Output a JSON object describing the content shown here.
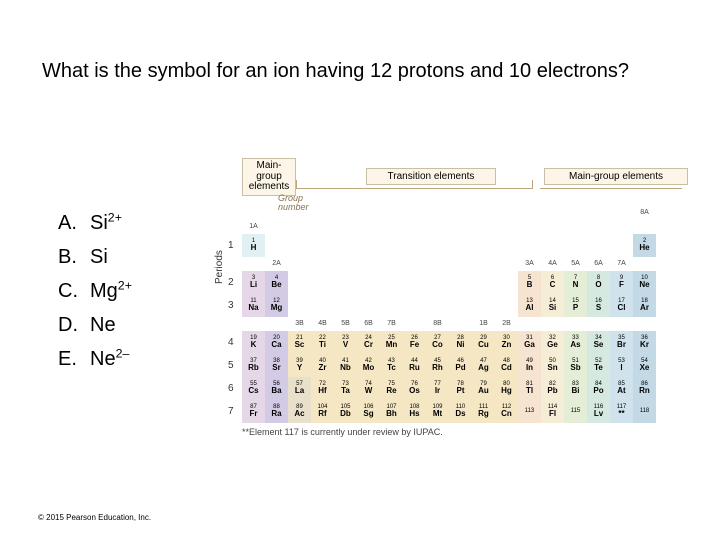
{
  "question": "What is the symbol for an ion having 12 protons and 10 electrons?",
  "answers": [
    {
      "letter": "A.",
      "sym": "Si",
      "sup": "2+"
    },
    {
      "letter": "B.",
      "sym": "Si",
      "sup": ""
    },
    {
      "letter": "C.",
      "sym": "Mg",
      "sup": "2+"
    },
    {
      "letter": "D.",
      "sym": "Ne",
      "sup": ""
    },
    {
      "letter": "E.",
      "sym": "Ne",
      "sup": "2–"
    }
  ],
  "copyright": "© 2015  Pearson Education, Inc.",
  "labels": {
    "main_left": "Main-\ngroup\nelements",
    "transition": "Transition elements",
    "main_right": "Main-group elements",
    "group_number": "Group\nnumber",
    "periods": "Periods"
  },
  "note": "**Element 117 is currently under review by IUPAC.",
  "col_heads": [
    "1A",
    "2A",
    "3B",
    "4B",
    "5B",
    "6B",
    "7B",
    "",
    "8B",
    "",
    "1B",
    "2B",
    "3A",
    "4A",
    "5A",
    "6A",
    "7A",
    "8A"
  ],
  "periods": [
    "1",
    "2",
    "3",
    "4",
    "5",
    "6",
    "7"
  ],
  "cells": [
    [
      {
        "n": "1",
        "s": "H",
        "c": "c-h"
      },
      null,
      null,
      null,
      null,
      null,
      null,
      null,
      null,
      null,
      null,
      null,
      null,
      null,
      null,
      null,
      null,
      {
        "n": "2",
        "s": "He",
        "c": "c-nob"
      }
    ],
    [
      {
        "n": "3",
        "s": "Li",
        "c": "c-alk"
      },
      {
        "n": "4",
        "s": "Be",
        "c": "c-ae"
      },
      null,
      null,
      null,
      null,
      null,
      null,
      null,
      null,
      null,
      null,
      {
        "n": "5",
        "s": "B",
        "c": "c-bor"
      },
      {
        "n": "6",
        "s": "C",
        "c": "c-car"
      },
      {
        "n": "7",
        "s": "N",
        "c": "c-nit"
      },
      {
        "n": "8",
        "s": "O",
        "c": "c-oxy"
      },
      {
        "n": "9",
        "s": "F",
        "c": "c-hal"
      },
      {
        "n": "10",
        "s": "Ne",
        "c": "c-nob"
      }
    ],
    [
      {
        "n": "11",
        "s": "Na",
        "c": "c-alk"
      },
      {
        "n": "12",
        "s": "Mg",
        "c": "c-ae"
      },
      null,
      null,
      null,
      null,
      null,
      null,
      null,
      null,
      null,
      null,
      {
        "n": "13",
        "s": "Al",
        "c": "c-bor"
      },
      {
        "n": "14",
        "s": "Si",
        "c": "c-car"
      },
      {
        "n": "15",
        "s": "P",
        "c": "c-nit"
      },
      {
        "n": "16",
        "s": "S",
        "c": "c-oxy"
      },
      {
        "n": "17",
        "s": "Cl",
        "c": "c-hal"
      },
      {
        "n": "18",
        "s": "Ar",
        "c": "c-nob"
      }
    ],
    [
      {
        "n": "19",
        "s": "K",
        "c": "c-alk"
      },
      {
        "n": "20",
        "s": "Ca",
        "c": "c-ae"
      },
      {
        "n": "21",
        "s": "Sc",
        "c": "c-tm"
      },
      {
        "n": "22",
        "s": "Ti",
        "c": "c-tm"
      },
      {
        "n": "23",
        "s": "V",
        "c": "c-tm"
      },
      {
        "n": "24",
        "s": "Cr",
        "c": "c-tm"
      },
      {
        "n": "25",
        "s": "Mn",
        "c": "c-tm"
      },
      {
        "n": "26",
        "s": "Fe",
        "c": "c-tm"
      },
      {
        "n": "27",
        "s": "Co",
        "c": "c-tm"
      },
      {
        "n": "28",
        "s": "Ni",
        "c": "c-tm"
      },
      {
        "n": "29",
        "s": "Cu",
        "c": "c-tm"
      },
      {
        "n": "30",
        "s": "Zn",
        "c": "c-tm"
      },
      {
        "n": "31",
        "s": "Ga",
        "c": "c-bor"
      },
      {
        "n": "32",
        "s": "Ge",
        "c": "c-car"
      },
      {
        "n": "33",
        "s": "As",
        "c": "c-nit"
      },
      {
        "n": "34",
        "s": "Se",
        "c": "c-oxy"
      },
      {
        "n": "35",
        "s": "Br",
        "c": "c-hal"
      },
      {
        "n": "36",
        "s": "Kr",
        "c": "c-nob"
      }
    ],
    [
      {
        "n": "37",
        "s": "Rb",
        "c": "c-alk"
      },
      {
        "n": "38",
        "s": "Sr",
        "c": "c-ae"
      },
      {
        "n": "39",
        "s": "Y",
        "c": "c-tm"
      },
      {
        "n": "40",
        "s": "Zr",
        "c": "c-tm"
      },
      {
        "n": "41",
        "s": "Nb",
        "c": "c-tm"
      },
      {
        "n": "42",
        "s": "Mo",
        "c": "c-tm"
      },
      {
        "n": "43",
        "s": "Tc",
        "c": "c-tm"
      },
      {
        "n": "44",
        "s": "Ru",
        "c": "c-tm"
      },
      {
        "n": "45",
        "s": "Rh",
        "c": "c-tm"
      },
      {
        "n": "46",
        "s": "Pd",
        "c": "c-tm"
      },
      {
        "n": "47",
        "s": "Ag",
        "c": "c-tm"
      },
      {
        "n": "48",
        "s": "Cd",
        "c": "c-tm"
      },
      {
        "n": "49",
        "s": "In",
        "c": "c-bor"
      },
      {
        "n": "50",
        "s": "Sn",
        "c": "c-car"
      },
      {
        "n": "51",
        "s": "Sb",
        "c": "c-nit"
      },
      {
        "n": "52",
        "s": "Te",
        "c": "c-oxy"
      },
      {
        "n": "53",
        "s": "I",
        "c": "c-hal"
      },
      {
        "n": "54",
        "s": "Xe",
        "c": "c-nob"
      }
    ],
    [
      {
        "n": "55",
        "s": "Cs",
        "c": "c-alk"
      },
      {
        "n": "56",
        "s": "Ba",
        "c": "c-ae"
      },
      {
        "n": "57",
        "s": "La",
        "c": "c-tm2"
      },
      {
        "n": "72",
        "s": "Hf",
        "c": "c-tm"
      },
      {
        "n": "73",
        "s": "Ta",
        "c": "c-tm"
      },
      {
        "n": "74",
        "s": "W",
        "c": "c-tm"
      },
      {
        "n": "75",
        "s": "Re",
        "c": "c-tm"
      },
      {
        "n": "76",
        "s": "Os",
        "c": "c-tm"
      },
      {
        "n": "77",
        "s": "Ir",
        "c": "c-tm"
      },
      {
        "n": "78",
        "s": "Pt",
        "c": "c-tm"
      },
      {
        "n": "79",
        "s": "Au",
        "c": "c-tm"
      },
      {
        "n": "80",
        "s": "Hg",
        "c": "c-tm"
      },
      {
        "n": "81",
        "s": "Tl",
        "c": "c-bor"
      },
      {
        "n": "82",
        "s": "Pb",
        "c": "c-car"
      },
      {
        "n": "83",
        "s": "Bi",
        "c": "c-nit"
      },
      {
        "n": "84",
        "s": "Po",
        "c": "c-oxy"
      },
      {
        "n": "85",
        "s": "At",
        "c": "c-hal"
      },
      {
        "n": "86",
        "s": "Rn",
        "c": "c-nob"
      }
    ],
    [
      {
        "n": "87",
        "s": "Fr",
        "c": "c-alk"
      },
      {
        "n": "88",
        "s": "Ra",
        "c": "c-ae"
      },
      {
        "n": "89",
        "s": "Ac",
        "c": "c-tm2"
      },
      {
        "n": "104",
        "s": "Rf",
        "c": "c-tm"
      },
      {
        "n": "105",
        "s": "Db",
        "c": "c-tm"
      },
      {
        "n": "106",
        "s": "Sg",
        "c": "c-tm"
      },
      {
        "n": "107",
        "s": "Bh",
        "c": "c-tm"
      },
      {
        "n": "108",
        "s": "Hs",
        "c": "c-tm"
      },
      {
        "n": "109",
        "s": "Mt",
        "c": "c-tm"
      },
      {
        "n": "110",
        "s": "Ds",
        "c": "c-tm"
      },
      {
        "n": "111",
        "s": "Rg",
        "c": "c-tm"
      },
      {
        "n": "112",
        "s": "Cn",
        "c": "c-tm"
      },
      {
        "n": "113",
        "s": "",
        "c": "c-bor"
      },
      {
        "n": "114",
        "s": "Fl",
        "c": "c-car"
      },
      {
        "n": "115",
        "s": "",
        "c": "c-nit"
      },
      {
        "n": "116",
        "s": "Lv",
        "c": "c-oxy"
      },
      {
        "n": "117",
        "s": "**",
        "c": "c-hal"
      },
      {
        "n": "118",
        "s": "",
        "c": "c-nob"
      }
    ]
  ]
}
